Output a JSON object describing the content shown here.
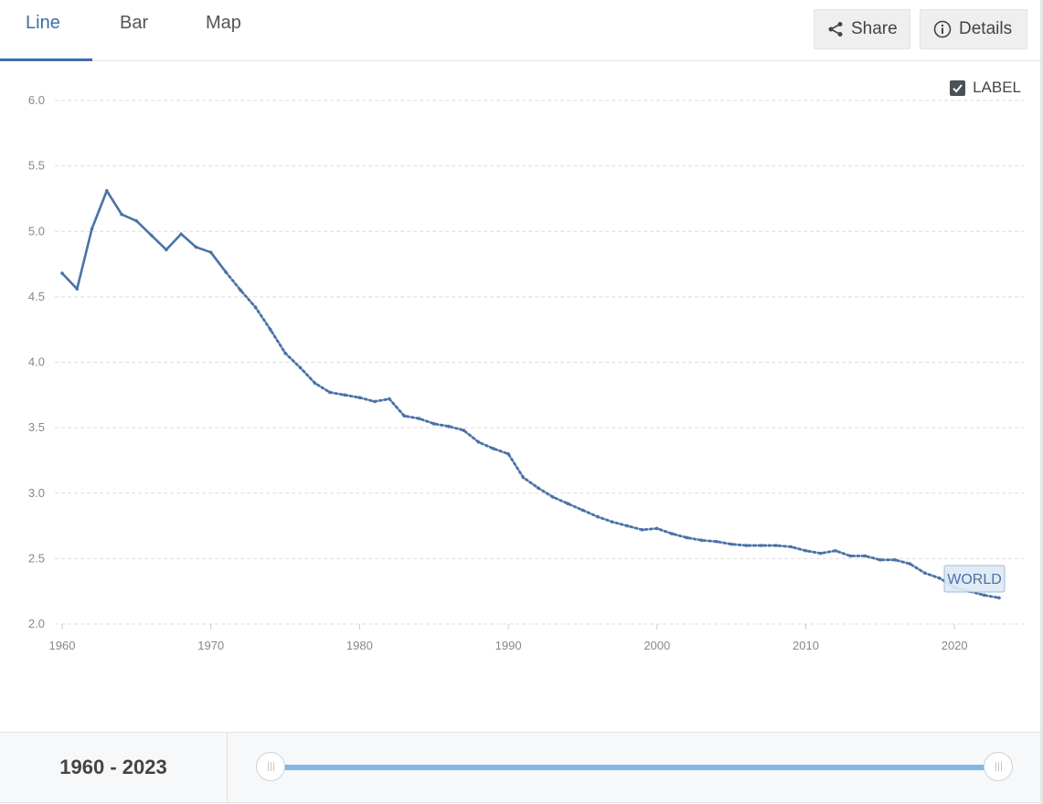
{
  "tabs": [
    {
      "label": "Line",
      "active": true
    },
    {
      "label": "Bar",
      "active": false
    },
    {
      "label": "Map",
      "active": false
    }
  ],
  "toolbar": {
    "share_label": "Share",
    "share_icon": "share-icon",
    "details_label": "Details",
    "details_icon": "info-icon"
  },
  "label_toggle": {
    "label": "LABEL",
    "checked": true
  },
  "range": {
    "label": "1960 - 2023",
    "start": 1960,
    "end": 2023
  },
  "colors": {
    "accent": "#3f6ea8",
    "line": "#4a72a6",
    "slider": "#7fb8e6"
  },
  "chart_data": {
    "type": "line",
    "title": "",
    "xlabel": "",
    "ylabel": "",
    "xlim": [
      1960,
      2023
    ],
    "ylim": [
      2.0,
      6.0
    ],
    "yticks": [
      "2.0",
      "2.5",
      "3.0",
      "3.5",
      "4.0",
      "4.5",
      "5.0",
      "5.5",
      "6.0"
    ],
    "xticks": [
      "1960",
      "1970",
      "1980",
      "1990",
      "2000",
      "2010",
      "2020"
    ],
    "grid": true,
    "legend": "none",
    "series": [
      {
        "name": "WORLD",
        "x": [
          1960,
          1961,
          1962,
          1963,
          1964,
          1965,
          1966,
          1967,
          1968,
          1969,
          1970,
          1971,
          1972,
          1973,
          1974,
          1975,
          1976,
          1977,
          1978,
          1979,
          1980,
          1981,
          1982,
          1983,
          1984,
          1985,
          1986,
          1987,
          1988,
          1989,
          1990,
          1991,
          1992,
          1993,
          1994,
          1995,
          1996,
          1997,
          1998,
          1999,
          2000,
          2001,
          2002,
          2003,
          2004,
          2005,
          2006,
          2007,
          2008,
          2009,
          2010,
          2011,
          2012,
          2013,
          2014,
          2015,
          2016,
          2017,
          2018,
          2019,
          2020,
          2021,
          2022,
          2023
        ],
        "values": [
          4.68,
          4.56,
          5.02,
          5.31,
          5.13,
          5.08,
          4.97,
          4.86,
          4.98,
          4.88,
          4.84,
          4.69,
          4.55,
          4.42,
          4.25,
          4.07,
          3.96,
          3.84,
          3.77,
          3.75,
          3.73,
          3.7,
          3.72,
          3.59,
          3.57,
          3.53,
          3.51,
          3.48,
          3.39,
          3.34,
          3.3,
          3.12,
          3.04,
          2.97,
          2.92,
          2.87,
          2.82,
          2.78,
          2.75,
          2.72,
          2.73,
          2.69,
          2.66,
          2.64,
          2.63,
          2.61,
          2.6,
          2.6,
          2.6,
          2.59,
          2.56,
          2.54,
          2.56,
          2.52,
          2.52,
          2.49,
          2.49,
          2.46,
          2.39,
          2.35,
          2.28,
          2.25,
          2.22,
          2.2
        ]
      }
    ]
  }
}
